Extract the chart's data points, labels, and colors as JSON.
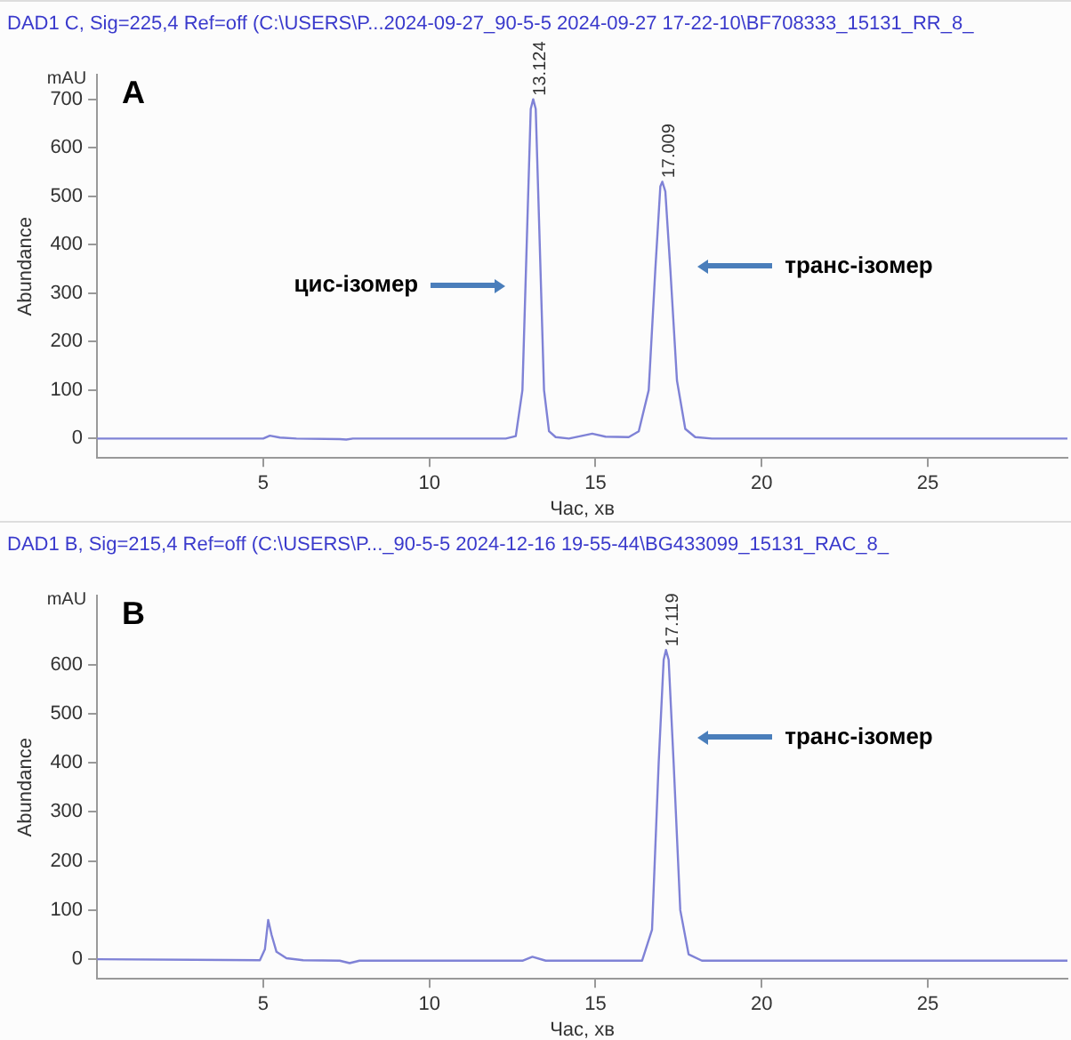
{
  "chart_data": [
    {
      "type": "line",
      "title": "DAD1 C, Sig=225,4 Ref=off (C:\\USERS\\P...2024-09-27_90-5-5 2024-09-27 17-22-10\\BF708333_15131_RR_8_",
      "xlabel": "Час, хв",
      "ylabel": "Abundance",
      "annotations": [
        "A",
        "mAU",
        {
          "text": "13.124",
          "x": 13.124,
          "y": 700
        },
        {
          "text": "17.009",
          "x": 17.009,
          "y": 530
        },
        "цис-ізомер",
        "транс-ізомер"
      ],
      "series": [
        {
          "color": "#7f82d6",
          "x": [
            0,
            5.0,
            5.2,
            5.5,
            6.0,
            7.3,
            7.5,
            7.7,
            12.3,
            12.6,
            12.8,
            12.95,
            13.05,
            13.124,
            13.2,
            13.3,
            13.45,
            13.6,
            13.8,
            14.2,
            14.9,
            15.3,
            16.0,
            16.3,
            16.6,
            16.8,
            16.95,
            17.009,
            17.1,
            17.25,
            17.45,
            17.7,
            18.0,
            18.5,
            29.2
          ],
          "values": [
            0,
            0,
            6,
            2,
            0,
            -1,
            -2,
            0,
            0,
            5,
            100,
            450,
            680,
            700,
            680,
            450,
            100,
            15,
            3,
            0,
            10,
            4,
            3,
            15,
            100,
            350,
            520,
            530,
            510,
            350,
            120,
            20,
            3,
            0,
            0
          ]
        }
      ],
      "xlim": [
        0,
        29.2
      ],
      "xticks": [
        5,
        10,
        15,
        20,
        25
      ],
      "ylim": [
        -40,
        750
      ],
      "yticks": [
        0,
        100,
        200,
        300,
        400,
        500,
        600,
        700
      ],
      "grid": false,
      "legend": false
    },
    {
      "type": "line",
      "title": "DAD1 B, Sig=215,4 Ref=off (C:\\USERS\\P..._90-5-5 2024-12-16 19-55-44\\BG433099_15131_RAC_8_",
      "xlabel": "Час, хв",
      "ylabel": "Abundance",
      "annotations": [
        "B",
        "mAU",
        {
          "text": "17.119",
          "x": 17.119,
          "y": 630
        },
        "транс-ізомер"
      ],
      "series": [
        {
          "color": "#7f82d6",
          "x": [
            0,
            4.9,
            5.05,
            5.15,
            5.25,
            5.4,
            5.7,
            6.2,
            7.3,
            7.6,
            7.9,
            12.8,
            13.1,
            13.5,
            16.4,
            16.7,
            16.9,
            17.05,
            17.119,
            17.2,
            17.35,
            17.55,
            17.8,
            18.2,
            29.2
          ],
          "values": [
            0,
            -2,
            20,
            80,
            50,
            15,
            2,
            -2,
            -3,
            -8,
            -3,
            -3,
            5,
            -3,
            -3,
            60,
            400,
            610,
            630,
            610,
            400,
            100,
            10,
            -3,
            -3
          ]
        }
      ],
      "xlim": [
        0,
        29.2
      ],
      "xticks": [
        5,
        10,
        15,
        20,
        25
      ],
      "ylim": [
        -40,
        740
      ],
      "yticks": [
        0,
        100,
        200,
        300,
        400,
        500,
        600
      ],
      "grid": false,
      "legend": false
    }
  ]
}
